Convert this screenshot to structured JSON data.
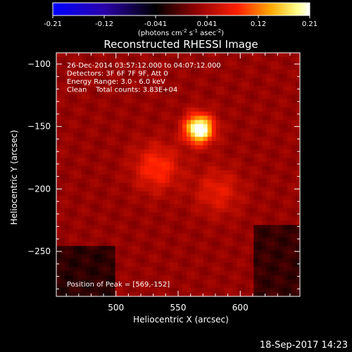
{
  "colorbar": {
    "ticks": [
      "-0.21",
      "-0.12",
      "-0.041",
      "0.041",
      "0.12",
      "0.21"
    ],
    "range": [
      -0.21,
      0.21
    ],
    "colormap": [
      "#0000ff",
      "#2a00aa",
      "#000000",
      "#8a0000",
      "#ff2000",
      "#ffaa00",
      "#ffff88",
      "#ffffff"
    ]
  },
  "units_label": "(photons cm^-2 s^-1 asec^-2)",
  "chart_data": {
    "type": "heatmap",
    "title": "Reconstructed RHESSI Image",
    "xlabel": "Heliocentric X (arcsec)",
    "ylabel": "Heliocentric Y (arcsec)",
    "xlim": [
      452,
      648
    ],
    "ylim": [
      -286,
      -91
    ],
    "xticks": [
      500,
      550,
      600
    ],
    "yticks": [
      -100,
      -150,
      -200,
      -250
    ],
    "info_lines": [
      "26-Dec-2014 03:57:12.000 to 04:07:12.000",
      "Detectors: 3F 6F 7F 9F, Att 0",
      "Energy Range: 3.0 - 6.0 keV",
      "Clean    Total counts: 3.83E+04"
    ],
    "peak_label": "Position of Peak = [569,-152]",
    "sources": [
      {
        "x": 567,
        "y": -152,
        "peak": 0.21
      },
      {
        "x": 533,
        "y": -183,
        "peak": 0.07
      },
      {
        "x": 582,
        "y": -202,
        "peak": 0.05
      }
    ],
    "peak_position": [
      569,
      -152
    ]
  },
  "footer_date": "18-Sep-2017 14:23"
}
